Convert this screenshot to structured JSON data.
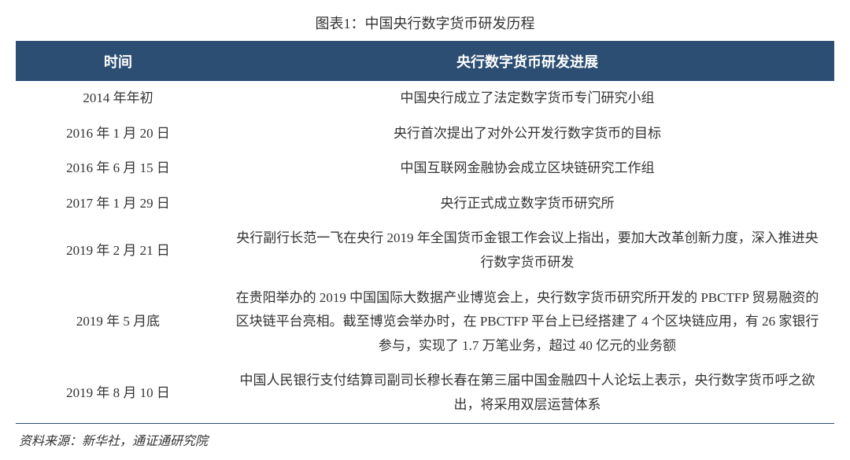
{
  "title": "图表1：中国央行数字货币研发历程",
  "colors": {
    "header_bg": "#2c4e72",
    "header_text": "#ffffff",
    "body_text": "#333333",
    "border": "#2c4e72",
    "page_bg": "#ffffff"
  },
  "typography": {
    "title_fontsize": 18,
    "header_fontsize": 18,
    "cell_fontsize": 17,
    "source_fontsize": 16,
    "line_height": 1.8
  },
  "table": {
    "type": "table",
    "columns": [
      {
        "label": "时间",
        "width_pct": 25,
        "align": "center"
      },
      {
        "label": "央行数字货币研发进展",
        "width_pct": 75,
        "align": "center"
      }
    ],
    "rows": [
      {
        "date": "2014 年年初",
        "desc": "中国央行成立了法定数字货币专门研究小组"
      },
      {
        "date": "2016 年 1 月 20 日",
        "desc": "央行首次提出了对外公开发行数字货币的目标"
      },
      {
        "date": "2016 年 6 月 15 日",
        "desc": "中国互联网金融协会成立区块链研究工作组"
      },
      {
        "date": "2017 年 1 月 29 日",
        "desc": "央行正式成立数字货币研究所"
      },
      {
        "date": "2019 年 2 月 21 日",
        "desc": "央行副行长范一飞在央行 2019 年全国货币金银工作会议上指出，要加大改革创新力度，深入推进央行数字货币研发"
      },
      {
        "date": "2019 年 5 月底",
        "desc": "在贵阳举办的 2019 中国国际大数据产业博览会上，央行数字货币研究所开发的 PBCTFP 贸易融资的区块链平台亮相。截至博览会举办时，在 PBCTFP 平台上已经搭建了 4 个区块链应用，有 26 家银行参与，实现了 1.7 万笔业务，超过 40 亿元的业务额"
      },
      {
        "date": "2019 年 8 月 10 日",
        "desc": "中国人民银行支付结算司副司长穆长春在第三届中国金融四十人论坛上表示，央行数字货币呼之欲出，将采用双层运营体系"
      }
    ]
  },
  "source": "资料来源：新华社，通证通研究院"
}
